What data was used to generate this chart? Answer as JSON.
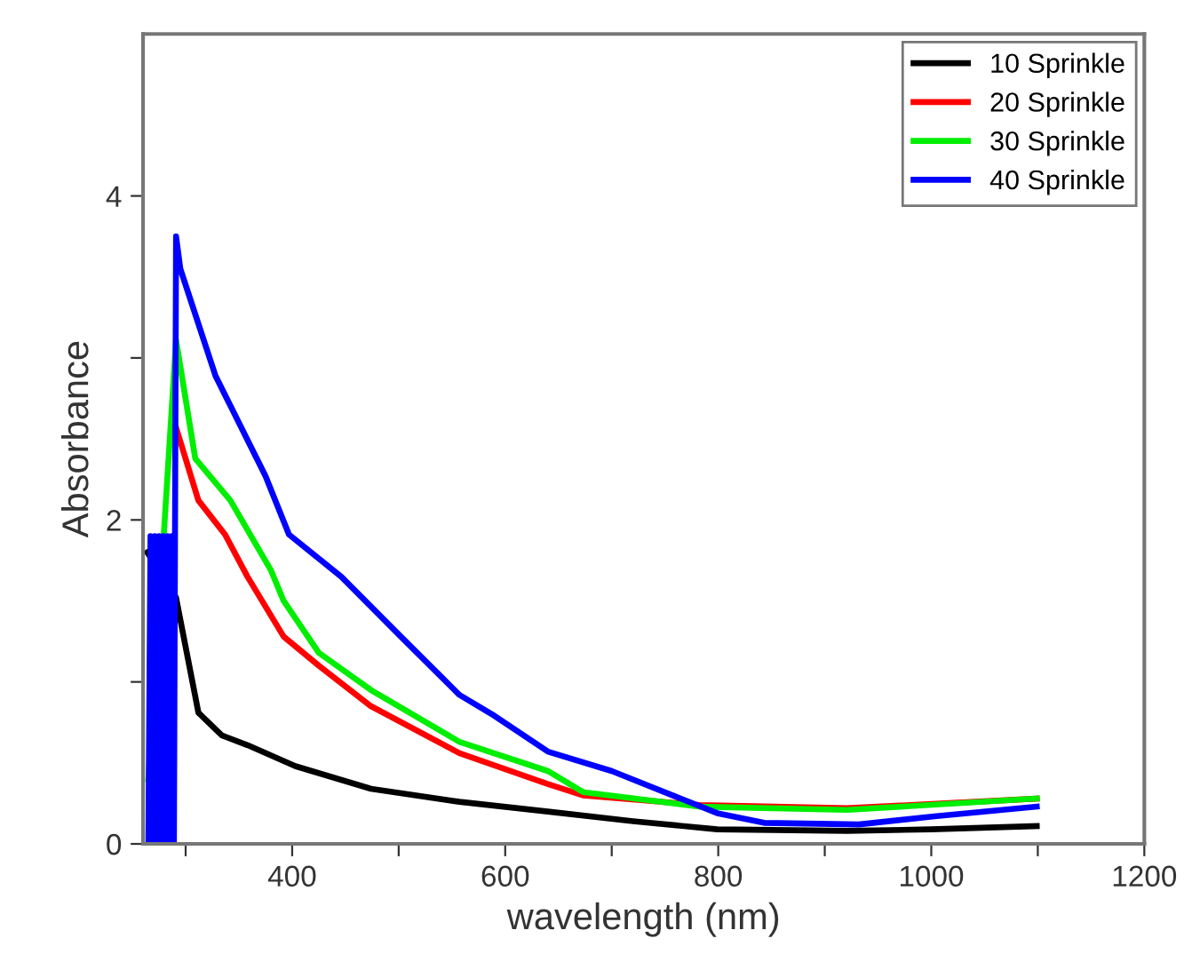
{
  "chart_data": {
    "type": "line",
    "xlabel": "wavelength (nm)",
    "ylabel": "Absorbance",
    "xlim": [
      260,
      1200
    ],
    "ylim": [
      0,
      5
    ],
    "xticks": [
      {
        "value": 300,
        "label": null
      },
      400,
      {
        "value": 500,
        "label": null
      },
      600,
      {
        "value": 700,
        "label": null
      },
      800,
      {
        "value": 900,
        "label": null
      },
      1000,
      {
        "value": 1100,
        "label": null
      },
      1200
    ],
    "yticks": [
      0,
      {
        "value": 1,
        "label": null
      },
      2,
      {
        "value": 3,
        "label": null
      },
      4
    ],
    "grid": false,
    "legend": "top right",
    "marker": "none",
    "line_style": "solid",
    "series": [
      {
        "name": "10 Sprinkle",
        "color": "#000000",
        "x": [
          264,
          291,
          312,
          334,
          358,
          403,
          474,
          557,
          640,
          720,
          799,
          921,
          1000,
          1099
        ],
        "values": [
          1.8,
          1.52,
          0.81,
          0.67,
          0.61,
          0.48,
          0.34,
          0.26,
          0.2,
          0.14,
          0.09,
          0.08,
          0.09,
          0.11
        ]
      },
      {
        "name": "20 Sprinkle",
        "color": "#ff0000",
        "x": [
          291,
          312,
          337,
          358,
          392,
          425,
          474,
          557,
          640,
          673,
          783,
          921,
          1099
        ],
        "values": [
          2.57,
          2.12,
          1.91,
          1.65,
          1.28,
          1.1,
          0.85,
          0.56,
          0.37,
          0.3,
          0.24,
          0.22,
          0.28
        ]
      },
      {
        "name": "30 Sprinkle",
        "color": "#00ee00",
        "x": [
          265,
          291,
          309,
          342,
          380,
          392,
          425,
          474,
          557,
          640,
          673,
          783,
          921,
          1099
        ],
        "values": [
          0.4,
          3.11,
          2.38,
          2.12,
          1.69,
          1.5,
          1.18,
          0.95,
          0.63,
          0.45,
          0.32,
          0.23,
          0.21,
          0.28
        ]
      },
      {
        "name": "40 Sprinkle",
        "color": "#0000ff",
        "x": [
          265,
          267,
          269,
          271,
          273,
          275,
          277,
          279,
          281,
          283,
          285,
          287,
          289,
          291,
          295,
          328,
          375,
          397,
          446,
          502,
          557,
          590,
          640,
          700,
          799,
          843,
          932,
          1003,
          1099
        ],
        "values": [
          0.0,
          1.9,
          0.0,
          1.9,
          0.0,
          1.9,
          0.0,
          1.9,
          0.0,
          1.9,
          0.0,
          1.9,
          0.0,
          3.75,
          3.55,
          2.89,
          2.27,
          1.91,
          1.65,
          1.28,
          0.92,
          0.79,
          0.57,
          0.45,
          0.19,
          0.13,
          0.12,
          0.17,
          0.23
        ]
      }
    ]
  }
}
